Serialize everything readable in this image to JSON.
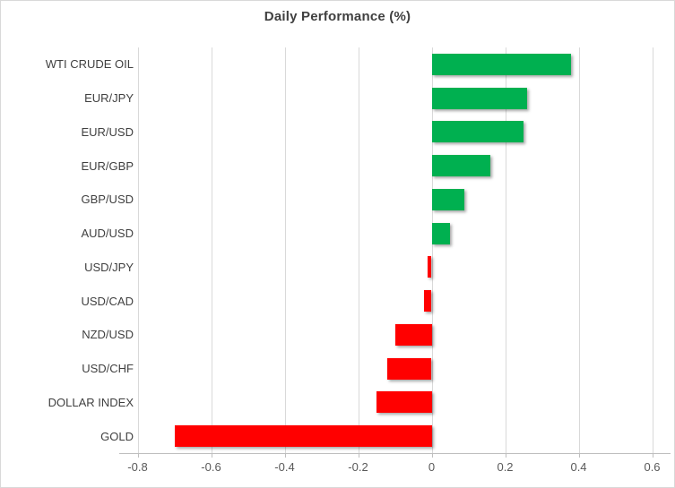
{
  "chart": {
    "title": "Daily Performance (%)"
  },
  "chart_data": {
    "type": "bar",
    "orientation": "horizontal",
    "title": "Daily Performance (%)",
    "categories": [
      "WTI CRUDE OIL",
      "EUR/JPY",
      "EUR/USD",
      "EUR/GBP",
      "GBP/USD",
      "AUD/USD",
      "USD/JPY",
      "USD/CAD",
      "NZD/USD",
      "USD/CHF",
      "DOLLAR INDEX",
      "GOLD"
    ],
    "values": [
      0.38,
      0.26,
      0.25,
      0.16,
      0.09,
      0.05,
      -0.01,
      -0.02,
      -0.1,
      -0.12,
      -0.15,
      -0.7
    ],
    "xlabel": "",
    "ylabel": "",
    "xlim": [
      -0.85,
      0.65
    ],
    "xticks": [
      -0.8,
      -0.6,
      -0.4,
      -0.2,
      0,
      0.2,
      0.4,
      0.6
    ],
    "tick_labels": [
      "-0.8",
      "-0.6",
      "-0.4",
      "-0.2",
      "0",
      "0.2",
      "0.4",
      "0.6"
    ],
    "grid": true,
    "legend": false,
    "colors": {
      "positive": "#00B050",
      "negative": "#FF0000",
      "gridline": "#D9D9D9",
      "axis_line": "#BFBFBF",
      "tick_mark": "#BFBFBF",
      "border": "#D9D9D9",
      "title_text": "#404040",
      "category_text": "#404040",
      "tick_text": "#595959",
      "background": "#FFFFFF"
    }
  }
}
